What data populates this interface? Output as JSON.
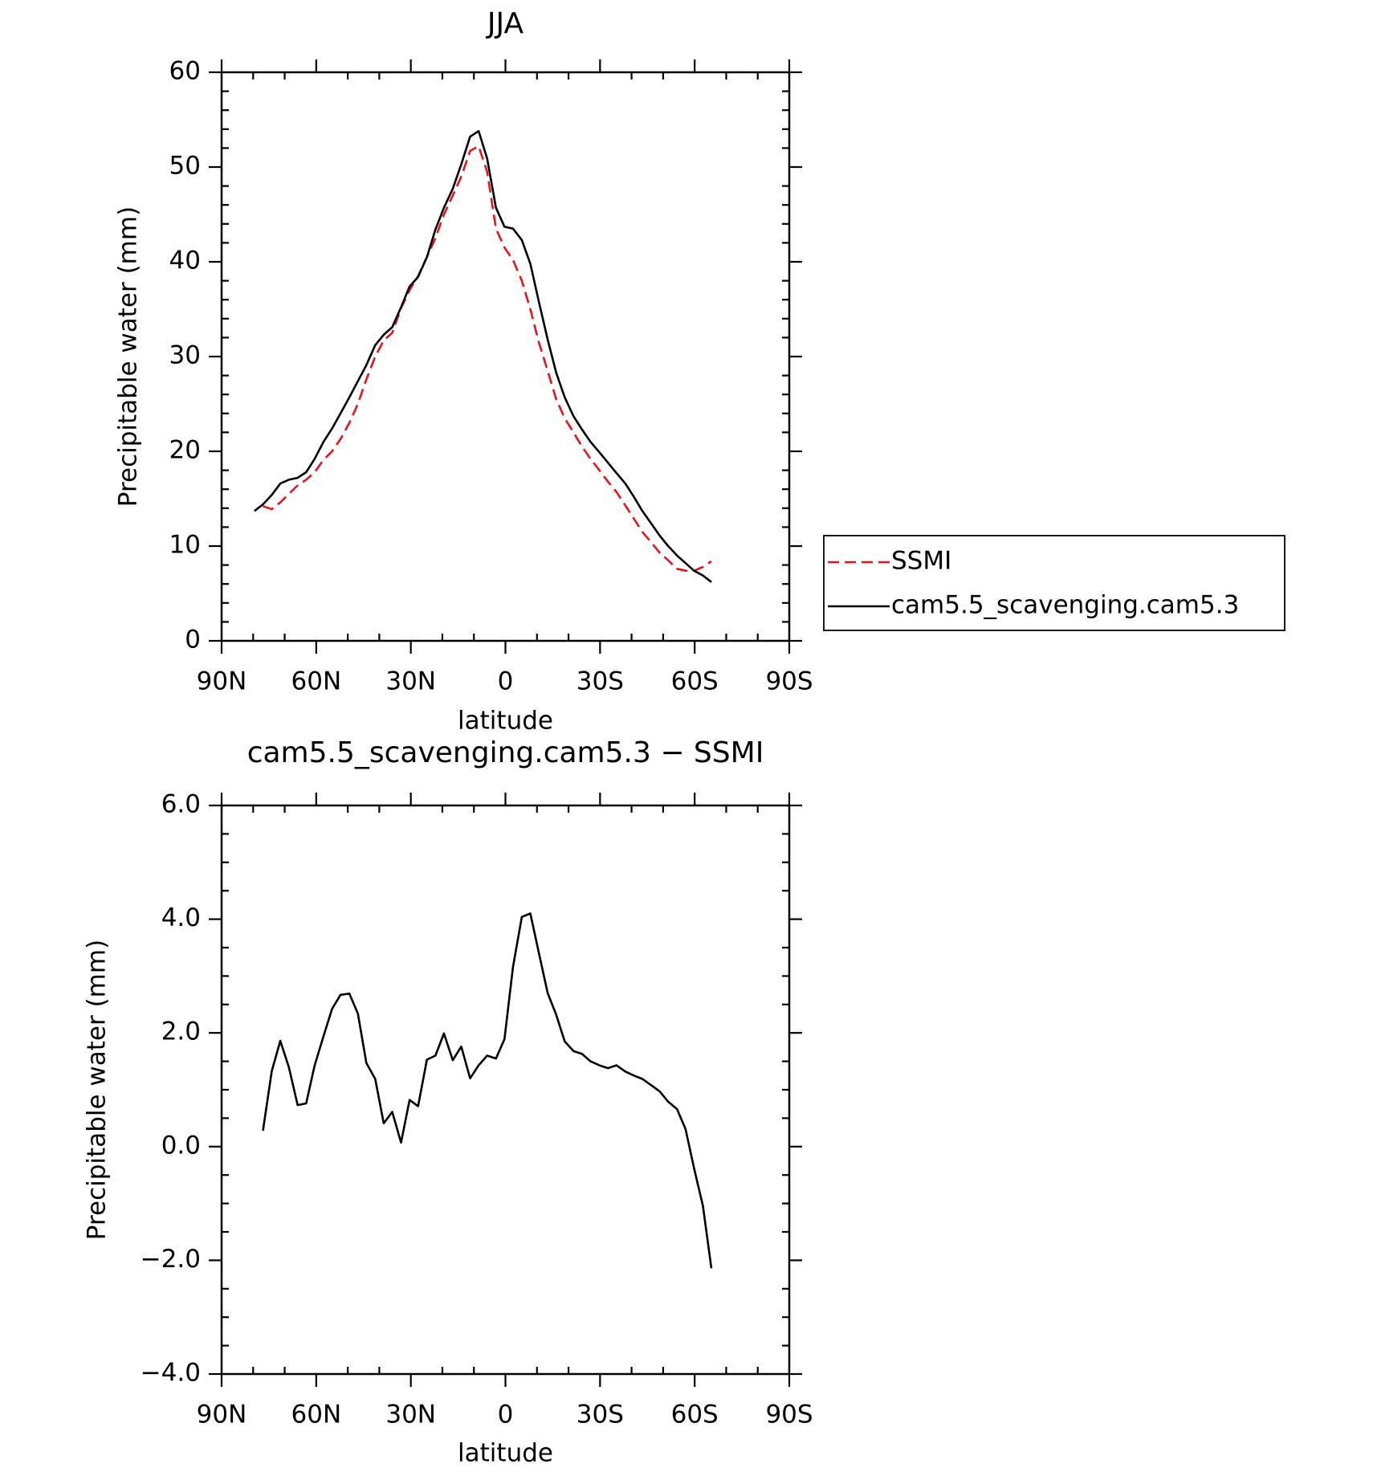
{
  "chart_data": [
    {
      "type": "line",
      "title": "JJA",
      "xlabel": "latitude",
      "ylabel": "Precipitable water (mm)",
      "x": [
        79.6,
        76.9,
        74.1,
        71.4,
        68.7,
        65.9,
        63.2,
        60.5,
        57.7,
        55.0,
        52.3,
        49.5,
        46.8,
        44.1,
        41.3,
        38.6,
        35.9,
        33.1,
        30.4,
        27.7,
        24.9,
        22.2,
        19.5,
        16.7,
        14.0,
        11.2,
        8.5,
        5.8,
        3.0,
        0.3,
        -2.4,
        -5.2,
        -7.9,
        -10.6,
        -13.4,
        -16.1,
        -18.8,
        -21.6,
        -24.3,
        -27.0,
        -29.8,
        -32.5,
        -35.2,
        -38.0,
        -40.7,
        -43.4,
        -46.2,
        -48.9,
        -51.6,
        -54.4,
        -57.1,
        -59.8,
        -62.6,
        -65.3
      ],
      "series": [
        {
          "name": "SSMI",
          "color": "#e8141c",
          "style": "dashed",
          "values": [
            null,
            14.2,
            13.9,
            14.6,
            15.5,
            16.4,
            17.0,
            17.8,
            19.1,
            20.0,
            21.3,
            23.0,
            25.0,
            27.6,
            30.0,
            31.7,
            32.5,
            35.1,
            37.0,
            38.5,
            40.5,
            42.5,
            45.0,
            47.0,
            49.0,
            51.7,
            52.2,
            49.5,
            43.5,
            41.5,
            40.2,
            38.0,
            35.0,
            31.5,
            28.5,
            25.5,
            23.5,
            22.0,
            20.5,
            19.2,
            18.0,
            16.8,
            15.7,
            14.3,
            12.9,
            11.5,
            10.4,
            9.3,
            8.5,
            7.6,
            7.4,
            7.4,
            7.8,
            8.4
          ]
        },
        {
          "name": "cam5.5_scavenging.cam5.3",
          "color": "#000000",
          "style": "solid",
          "values": [
            13.7,
            14.4,
            15.4,
            16.6,
            17.0,
            17.2,
            17.8,
            19.2,
            21.0,
            22.4,
            24.0,
            25.7,
            27.4,
            29.1,
            31.2,
            32.3,
            33.1,
            35.2,
            37.4,
            38.4,
            40.5,
            43.4,
            45.7,
            47.7,
            50.3,
            53.2,
            53.8,
            50.9,
            45.7,
            43.7,
            43.5,
            42.3,
            39.8,
            35.8,
            31.8,
            28.3,
            25.7,
            23.7,
            22.3,
            21.0,
            19.9,
            18.8,
            17.7,
            16.6,
            15.2,
            13.7,
            12.4,
            11.1,
            10.0,
            9.0,
            8.2,
            7.4,
            6.9,
            6.2
          ]
        }
      ],
      "xlim": [
        90,
        -90
      ],
      "xticks": [
        {
          "value": 90,
          "label": "90N"
        },
        {
          "value": 60,
          "label": "60N"
        },
        {
          "value": 30,
          "label": "30N"
        },
        0,
        {
          "value": -30,
          "label": "30S"
        },
        {
          "value": -60,
          "label": "60S"
        },
        {
          "value": -90,
          "label": "90S"
        }
      ],
      "ylim": [
        0,
        60
      ],
      "yticks": [
        0,
        10,
        20,
        30,
        40,
        50,
        60
      ],
      "legend": "outside-right"
    },
    {
      "type": "line",
      "title": "cam5.5_scavenging.cam5.3 − SSMI",
      "xlabel": "latitude",
      "ylabel": "Precipitable water (mm)",
      "x": [
        76.9,
        74.1,
        71.4,
        68.7,
        65.9,
        63.2,
        60.5,
        57.7,
        55.0,
        52.3,
        49.5,
        46.8,
        44.1,
        41.3,
        38.6,
        35.9,
        33.1,
        30.4,
        27.7,
        24.9,
        22.2,
        19.5,
        16.7,
        14.0,
        11.2,
        8.5,
        5.8,
        3.0,
        0.3,
        -2.4,
        -5.2,
        -7.9,
        -10.6,
        -13.4,
        -16.1,
        -18.8,
        -21.6,
        -24.3,
        -27.0,
        -29.8,
        -32.5,
        -35.2,
        -38.0,
        -40.7,
        -43.4,
        -46.2,
        -48.9,
        -51.6,
        -54.4,
        -57.1,
        -59.8,
        -62.6,
        -65.3
      ],
      "series": [
        {
          "color": "#000000",
          "style": "solid",
          "values": [
            0.28,
            1.33,
            1.86,
            1.4,
            0.73,
            0.76,
            1.43,
            1.94,
            2.42,
            2.67,
            2.69,
            2.34,
            1.47,
            1.19,
            0.41,
            0.61,
            0.07,
            0.82,
            0.71,
            1.53,
            1.6,
            1.99,
            1.52,
            1.76,
            1.2,
            1.43,
            1.6,
            1.55,
            1.89,
            3.16,
            4.04,
            4.1,
            3.41,
            2.7,
            2.32,
            1.85,
            1.68,
            1.63,
            1.5,
            1.43,
            1.38,
            1.43,
            1.32,
            1.25,
            1.19,
            1.08,
            0.97,
            0.79,
            0.66,
            0.31,
            -0.38,
            -1.04,
            -2.14
          ]
        }
      ],
      "xlim": [
        90,
        -90
      ],
      "xticks": [
        {
          "value": 90,
          "label": "90N"
        },
        {
          "value": 60,
          "label": "60N"
        },
        {
          "value": 30,
          "label": "30N"
        },
        0,
        {
          "value": -30,
          "label": "30S"
        },
        {
          "value": -60,
          "label": "60S"
        },
        {
          "value": -90,
          "label": "90S"
        }
      ],
      "ylim": [
        -4,
        6
      ],
      "yticks": [
        {
          "value": -4,
          "label": "−4.0"
        },
        {
          "value": -2,
          "label": "−2.0"
        },
        {
          "value": 0,
          "label": "0.0"
        },
        {
          "value": 2,
          "label": "2.0"
        },
        {
          "value": 4,
          "label": "4.0"
        },
        {
          "value": 6,
          "label": "6.0"
        }
      ]
    }
  ]
}
